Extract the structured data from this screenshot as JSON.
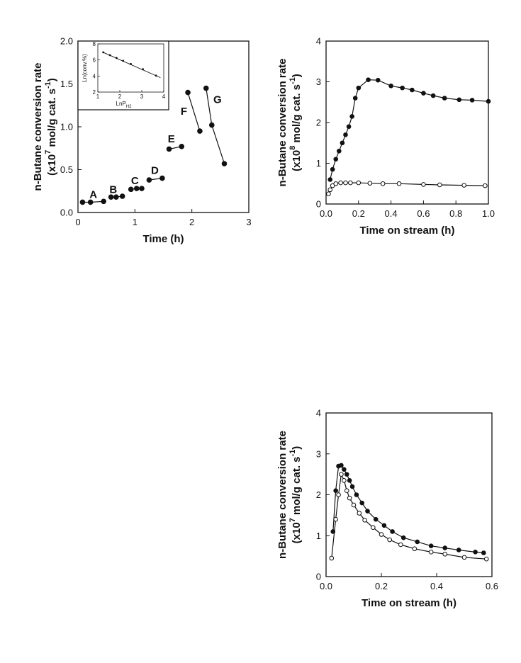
{
  "chart_data": [
    {
      "type": "line",
      "xlabel": "Time (h)",
      "ylabel": {
        "line1": "n-Butane conversion rate",
        "line2_pre": "(x10",
        "line2_exp": "7",
        "line2_mid": " mol/g cat. s",
        "line2_exp2": "-1",
        "line2_post": ")"
      },
      "xlim": [
        0,
        3
      ],
      "ylim": [
        0,
        2.0
      ],
      "xticks": [
        0,
        1,
        2,
        3
      ],
      "xtick_labels": [
        "0",
        "1",
        "2",
        "3"
      ],
      "yticks": [
        0,
        0.5,
        1.0,
        1.5,
        2.0
      ],
      "ytick_labels": [
        "0.0",
        "0.5",
        "1.0",
        "1.5",
        "2.0"
      ],
      "marker": "filled",
      "segments": [
        {
          "label": "A",
          "label_x": 0.27,
          "label_y": 0.21,
          "x": [
            0.08,
            0.22,
            0.45
          ],
          "y": [
            0.12,
            0.12,
            0.13
          ]
        },
        {
          "label": "B",
          "label_x": 0.62,
          "label_y": 0.27,
          "x": [
            0.58,
            0.67,
            0.78
          ],
          "y": [
            0.18,
            0.18,
            0.19
          ]
        },
        {
          "label": "C",
          "label_x": 1.0,
          "label_y": 0.37,
          "x": [
            0.93,
            1.03,
            1.12
          ],
          "y": [
            0.27,
            0.28,
            0.28
          ]
        },
        {
          "label": "D",
          "label_x": 1.35,
          "label_y": 0.49,
          "x": [
            1.25,
            1.48
          ],
          "y": [
            0.38,
            0.4
          ]
        },
        {
          "label": "E",
          "label_x": 1.64,
          "label_y": 0.86,
          "x": [
            1.6,
            1.82
          ],
          "y": [
            0.74,
            0.77
          ]
        },
        {
          "label": "F",
          "label_x": 1.86,
          "label_y": 1.18,
          "x": [
            1.93,
            2.14
          ],
          "y": [
            1.4,
            0.95
          ]
        },
        {
          "label": "G",
          "label_x": 2.45,
          "label_y": 1.32,
          "x": [
            2.25,
            2.35,
            2.57
          ],
          "y": [
            1.45,
            1.02,
            0.57
          ]
        }
      ],
      "inset": {
        "xlabel": {
          "pre": "LnP",
          "sub": "H2"
        },
        "ylabel": "Ln(conv.%)",
        "xlim": [
          1,
          4
        ],
        "ylim": [
          2,
          8
        ],
        "xticks": [
          1,
          2,
          3,
          4
        ],
        "xtick_labels": [
          "1",
          "2",
          "3",
          "4"
        ],
        "yticks": [
          2,
          4,
          6,
          8
        ],
        "ytick_labels": [
          "2",
          "4",
          "6",
          "8"
        ],
        "fit_line": {
          "x": [
            1.2,
            3.85
          ],
          "y": [
            7.0,
            3.8
          ]
        },
        "points": {
          "x": [
            1.25,
            1.55,
            1.85,
            2.15,
            2.5,
            3.05,
            3.65
          ],
          "y": [
            6.95,
            6.6,
            6.25,
            5.9,
            5.5,
            4.85,
            4.05
          ]
        }
      }
    },
    {
      "type": "line",
      "xlabel": "Time on stream (h)",
      "ylabel": {
        "line1": "n-Butane conversion rate",
        "line2_pre": "(x10",
        "line2_exp": "8",
        "line2_mid": " mol/g cat.  s",
        "line2_exp2": "-1",
        "line2_post": ")"
      },
      "xlim": [
        0,
        1.0
      ],
      "ylim": [
        0,
        4
      ],
      "xticks": [
        0,
        0.2,
        0.4,
        0.6,
        0.8,
        1.0
      ],
      "xtick_labels": [
        "0.0",
        "0.2",
        "0.4",
        "0.6",
        "0.8",
        "1.0"
      ],
      "yticks": [
        0,
        1,
        2,
        3,
        4
      ],
      "ytick_labels": [
        "0",
        "1",
        "2",
        "3",
        "4"
      ],
      "series": [
        {
          "marker": "filled",
          "x": [
            0.025,
            0.04,
            0.06,
            0.08,
            0.1,
            0.12,
            0.14,
            0.16,
            0.18,
            0.2,
            0.26,
            0.32,
            0.4,
            0.47,
            0.53,
            0.6,
            0.66,
            0.73,
            0.82,
            0.9,
            1.0
          ],
          "y": [
            0.6,
            0.85,
            1.1,
            1.3,
            1.5,
            1.7,
            1.9,
            2.15,
            2.6,
            2.85,
            3.05,
            3.04,
            2.9,
            2.85,
            2.8,
            2.72,
            2.66,
            2.6,
            2.56,
            2.55,
            2.52
          ]
        },
        {
          "marker": "open",
          "x": [
            0.015,
            0.025,
            0.04,
            0.06,
            0.09,
            0.12,
            0.15,
            0.2,
            0.27,
            0.35,
            0.45,
            0.6,
            0.7,
            0.85,
            0.98
          ],
          "y": [
            0.25,
            0.35,
            0.45,
            0.5,
            0.52,
            0.52,
            0.52,
            0.52,
            0.51,
            0.5,
            0.5,
            0.48,
            0.47,
            0.46,
            0.45
          ]
        }
      ]
    },
    {
      "type": "line",
      "xlabel": "Time on stream (h)",
      "ylabel": {
        "line1": "n-Butane conversion rate",
        "line2_pre": "(x10",
        "line2_exp": "7",
        "line2_mid": " mol/g cat. s",
        "line2_exp2": "-1",
        "line2_post": ")"
      },
      "xlim": [
        0,
        0.6
      ],
      "ylim": [
        0,
        4
      ],
      "xticks": [
        0,
        0.2,
        0.4,
        0.6
      ],
      "xtick_labels": [
        "0.0",
        "0.2",
        "0.4",
        "0.6"
      ],
      "yticks": [
        0,
        1,
        2,
        3,
        4
      ],
      "ytick_labels": [
        "0",
        "1",
        "2",
        "3",
        "4"
      ],
      "series": [
        {
          "marker": "filled",
          "x": [
            0.025,
            0.035,
            0.045,
            0.055,
            0.065,
            0.075,
            0.085,
            0.095,
            0.11,
            0.13,
            0.15,
            0.18,
            0.21,
            0.24,
            0.28,
            0.33,
            0.38,
            0.43,
            0.48,
            0.54,
            0.57
          ],
          "y": [
            1.1,
            2.1,
            2.7,
            2.72,
            2.62,
            2.5,
            2.35,
            2.2,
            2.0,
            1.8,
            1.6,
            1.4,
            1.25,
            1.1,
            0.95,
            0.85,
            0.75,
            0.7,
            0.65,
            0.6,
            0.58
          ]
        },
        {
          "marker": "open",
          "x": [
            0.02,
            0.035,
            0.045,
            0.055,
            0.065,
            0.075,
            0.085,
            0.1,
            0.12,
            0.14,
            0.17,
            0.2,
            0.23,
            0.27,
            0.32,
            0.38,
            0.43,
            0.5,
            0.58
          ],
          "y": [
            0.45,
            1.4,
            2.0,
            2.5,
            2.35,
            2.1,
            1.92,
            1.75,
            1.55,
            1.38,
            1.2,
            1.03,
            0.9,
            0.78,
            0.68,
            0.6,
            0.55,
            0.47,
            0.43
          ]
        }
      ]
    }
  ]
}
